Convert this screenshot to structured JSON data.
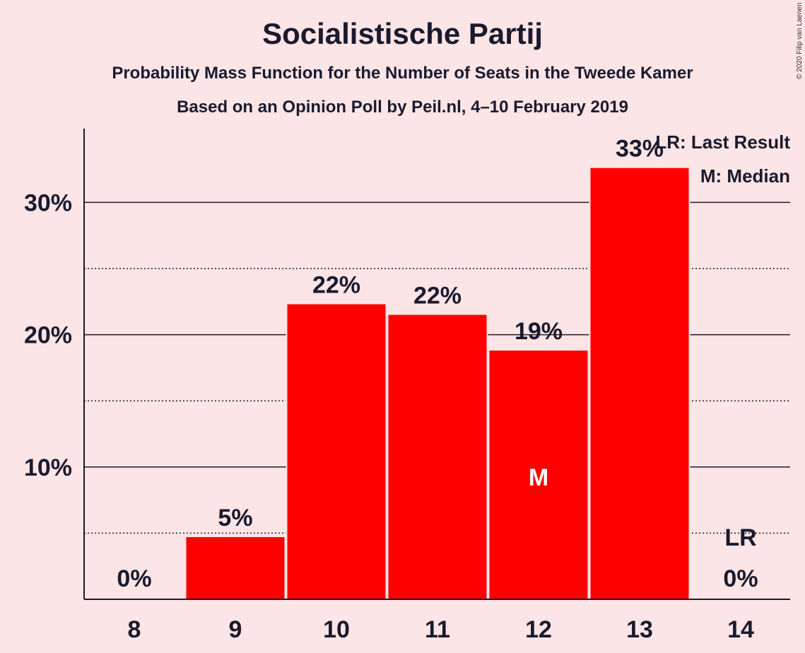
{
  "title": "Socialistische Partij",
  "subtitle": "Probability Mass Function for the Number of Seats in the Tweede Kamer",
  "subtitle2": "Based on an Opinion Poll by Peil.nl, 4–10 February 2019",
  "copyright": "© 2020 Filip van Laenen",
  "legend": {
    "last_result": "LR: Last Result",
    "median": "M: Median"
  },
  "chart_data": {
    "type": "bar",
    "categories": [
      "8",
      "9",
      "10",
      "11",
      "12",
      "13",
      "14"
    ],
    "values": [
      0,
      4.7,
      22.3,
      21.5,
      18.8,
      32.6,
      0
    ],
    "value_labels": [
      "0%",
      "5%",
      "22%",
      "22%",
      "19%",
      "33%",
      "0%"
    ],
    "y_tick_labels": [
      "10%",
      "20%",
      "30%"
    ],
    "y_ticks": [
      10,
      20,
      30
    ],
    "y_minor_ticks": [
      5,
      15,
      25
    ],
    "ylim": [
      0,
      35.5
    ],
    "median_category": "12",
    "median_marker": "M",
    "last_result_category": "14",
    "last_result_marker": "LR",
    "last_result_level": 5,
    "bar_color": "#FF0000",
    "background_color": "#FCE5E6",
    "grid": true,
    "legend_position": "top-right"
  }
}
